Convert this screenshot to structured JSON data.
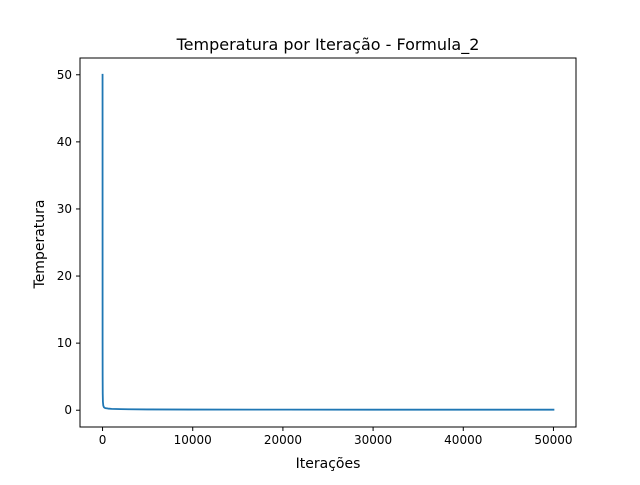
{
  "chart_data": {
    "type": "line",
    "title": "Temperatura por Iteração - Formula_2",
    "xlabel": "Iterações",
    "ylabel": "Temperatura",
    "xlim": [
      -2500,
      52500
    ],
    "ylim": [
      -2.5,
      52.5
    ],
    "xticks": [
      0,
      10000,
      20000,
      30000,
      40000,
      50000
    ],
    "yticks": [
      0,
      10,
      20,
      30,
      40,
      50
    ],
    "grid": false,
    "series": [
      {
        "color": "#1f77b4",
        "x": [
          0,
          5,
          10,
          20,
          40,
          80,
          150,
          300,
          600,
          1000,
          2000,
          5000,
          10000,
          20000,
          30000,
          40000,
          50000
        ],
        "y": [
          50,
          10,
          5,
          2.5,
          1.25,
          0.7,
          0.45,
          0.32,
          0.25,
          0.2,
          0.16,
          0.12,
          0.1,
          0.09,
          0.08,
          0.08,
          0.08
        ]
      }
    ]
  }
}
